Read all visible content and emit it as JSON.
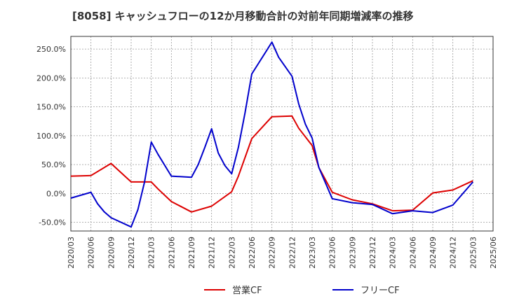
{
  "chart_data": {
    "type": "line",
    "title": "[8058]  キャッシュフローの12か月移動合計の対前年同期増減率の推移",
    "xlabel": "",
    "ylabel": "",
    "x_ticks": [
      "2020/03",
      "2020/06",
      "2020/09",
      "2020/12",
      "2021/03",
      "2021/06",
      "2021/09",
      "2021/12",
      "2022/03",
      "2022/06",
      "2022/09",
      "2022/12",
      "2023/03",
      "2023/06",
      "2023/09",
      "2023/12",
      "2024/03",
      "2024/06",
      "2024/09",
      "2024/12",
      "2025/03",
      "2025/06"
    ],
    "y_ticks": [
      "-50.0%",
      "0.0%",
      "50.0%",
      "100.0%",
      "150.0%",
      "200.0%",
      "250.0%"
    ],
    "y_tick_values": [
      -50,
      0,
      50,
      100,
      150,
      200,
      250
    ],
    "ylim": [
      -65,
      272
    ],
    "xlim": [
      "2020/03",
      "2025/06"
    ],
    "grid": true,
    "legend_position": "bottom-center",
    "series": [
      {
        "name": "営業CF",
        "color": "#dd0000",
        "points": [
          [
            "2020/03",
            30
          ],
          [
            "2020/06",
            31
          ],
          [
            "2020/09",
            52
          ],
          [
            "2020/12",
            20
          ],
          [
            "2021/03",
            20
          ],
          [
            "2021/04",
            8
          ],
          [
            "2021/06",
            -14
          ],
          [
            "2021/09",
            -32
          ],
          [
            "2021/12",
            -22
          ],
          [
            "2022/03",
            3
          ],
          [
            "2022/04",
            30
          ],
          [
            "2022/06",
            95
          ],
          [
            "2022/09",
            133
          ],
          [
            "2022/12",
            134
          ],
          [
            "2023/01",
            113
          ],
          [
            "2023/03",
            83
          ],
          [
            "2023/04",
            45
          ],
          [
            "2023/06",
            2
          ],
          [
            "2023/09",
            -11
          ],
          [
            "2023/12",
            -18
          ],
          [
            "2024/03",
            -30
          ],
          [
            "2024/06",
            -29
          ],
          [
            "2024/09",
            1
          ],
          [
            "2024/12",
            6
          ],
          [
            "2025/03",
            22
          ]
        ]
      },
      {
        "name": "フリーCF",
        "color": "#0000cc",
        "points": [
          [
            "2020/03",
            -8
          ],
          [
            "2020/06",
            2
          ],
          [
            "2020/07",
            -18
          ],
          [
            "2020/08",
            -32
          ],
          [
            "2020/09",
            -42
          ],
          [
            "2020/12",
            -58
          ],
          [
            "2021/01",
            -28
          ],
          [
            "2021/02",
            20
          ],
          [
            "2021/03",
            89
          ],
          [
            "2021/04",
            68
          ],
          [
            "2021/06",
            30
          ],
          [
            "2021/09",
            28
          ],
          [
            "2021/10",
            50
          ],
          [
            "2021/11",
            80
          ],
          [
            "2021/12",
            112
          ],
          [
            "2022/01",
            70
          ],
          [
            "2022/02",
            48
          ],
          [
            "2022/03",
            34
          ],
          [
            "2022/04",
            80
          ],
          [
            "2022/05",
            140
          ],
          [
            "2022/06",
            207
          ],
          [
            "2022/09",
            262
          ],
          [
            "2022/10",
            236
          ],
          [
            "2022/12",
            203
          ],
          [
            "2023/01",
            155
          ],
          [
            "2023/02",
            120
          ],
          [
            "2023/03",
            96
          ],
          [
            "2023/04",
            45
          ],
          [
            "2023/06",
            -9
          ],
          [
            "2023/09",
            -16
          ],
          [
            "2023/12",
            -19
          ],
          [
            "2024/03",
            -35
          ],
          [
            "2024/06",
            -30
          ],
          [
            "2024/09",
            -33
          ],
          [
            "2024/12",
            -20
          ],
          [
            "2025/03",
            20
          ]
        ]
      }
    ]
  }
}
